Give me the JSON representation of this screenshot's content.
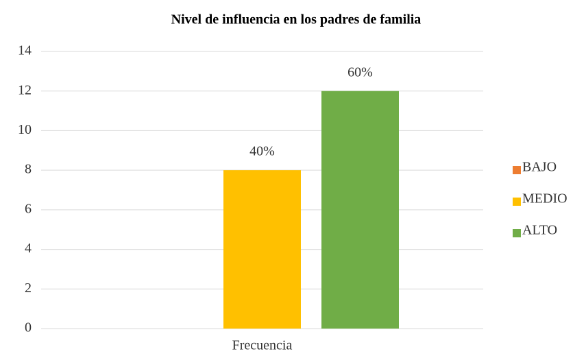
{
  "chart_data": {
    "type": "bar",
    "title": "Nivel de influencia en los padres de familia",
    "categories": [
      "Frecuencia"
    ],
    "series": [
      {
        "name": "BAJO",
        "color": "#ED7D31",
        "values": [
          0
        ]
      },
      {
        "name": "MEDIO",
        "color": "#FFC000",
        "values": [
          8
        ],
        "value_labels": [
          "40%"
        ]
      },
      {
        "name": "ALTO",
        "color": "#70AD47",
        "values": [
          12
        ],
        "value_labels": [
          "60%"
        ]
      }
    ],
    "ylim": [
      0,
      14
    ],
    "yticks": [
      0,
      2,
      4,
      6,
      8,
      10,
      12,
      14
    ],
    "grid": true,
    "legend": "right"
  }
}
